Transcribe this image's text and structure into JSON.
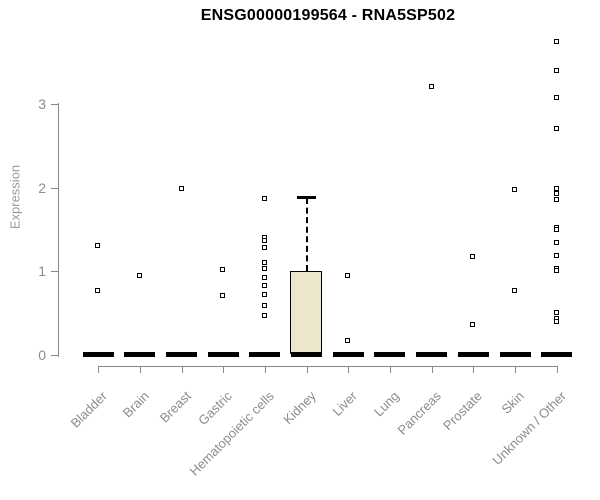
{
  "chart_data": {
    "type": "boxplot",
    "title": "ENSG00000199564 - RNA5SP502",
    "ylabel": "Expression",
    "yticks": [
      0,
      1,
      2,
      3
    ],
    "ylim": [
      0,
      3.85
    ],
    "grid": false,
    "legend": null,
    "categories": [
      "Bladder",
      "Brain",
      "Breast",
      "Gastric",
      "Hematopoietic cells",
      "Kidney",
      "Liver",
      "Lung",
      "Pancreas",
      "Prostate",
      "Skin",
      "Unknown / Other"
    ],
    "series": [
      {
        "category": "Bladder",
        "median": 0,
        "q1": 0,
        "q3": 0,
        "outliers": [
          1.3,
          0.77
        ]
      },
      {
        "category": "Brain",
        "median": 0,
        "q1": 0,
        "q3": 0,
        "outliers": [
          0.94
        ]
      },
      {
        "category": "Breast",
        "median": 0,
        "q1": 0,
        "q3": 0,
        "outliers": [
          1.98
        ]
      },
      {
        "category": "Gastric",
        "median": 0,
        "q1": 0,
        "q3": 0,
        "outliers": [
          1.02,
          0.7
        ]
      },
      {
        "category": "Hematopoietic cells",
        "median": 0,
        "q1": 0,
        "q3": 0,
        "outliers": [
          1.87,
          1.4,
          1.36,
          1.28,
          1.1,
          1.03,
          0.92,
          0.83,
          0.72,
          0.59,
          0.47
        ]
      },
      {
        "category": "Kidney",
        "median": 0,
        "q1": 0,
        "q3": 1.0,
        "whisker_high": 1.88,
        "whisker_low": 0,
        "outliers": []
      },
      {
        "category": "Liver",
        "median": 0,
        "q1": 0,
        "q3": 0,
        "outliers": [
          0.94,
          0.17
        ]
      },
      {
        "category": "Lung",
        "median": 0,
        "q1": 0,
        "q3": 0,
        "outliers": []
      },
      {
        "category": "Pancreas",
        "median": 0,
        "q1": 0,
        "q3": 0,
        "outliers": [
          3.2
        ]
      },
      {
        "category": "Prostate",
        "median": 0,
        "q1": 0,
        "q3": 0,
        "outliers": [
          1.17,
          0.36
        ]
      },
      {
        "category": "Skin",
        "median": 0,
        "q1": 0,
        "q3": 0,
        "outliers": [
          1.97,
          0.76
        ]
      },
      {
        "category": "Unknown / Other",
        "median": 0,
        "q1": 0,
        "q3": 0,
        "outliers": [
          3.74,
          3.4,
          3.07,
          2.7,
          1.99,
          1.92,
          1.85,
          1.52,
          1.49,
          1.34,
          1.18,
          1.03,
          1.0,
          0.5,
          0.43,
          0.39
        ]
      }
    ],
    "style": {
      "box_fill": "#ECE7CC",
      "box_border": "#000000",
      "axis_color": "#888888",
      "label_color": "#8C8C8C",
      "median_color": "#000000",
      "point_border": "#000000",
      "point_fill": "#FFFFFF",
      "background": "#FFFFFF"
    }
  }
}
